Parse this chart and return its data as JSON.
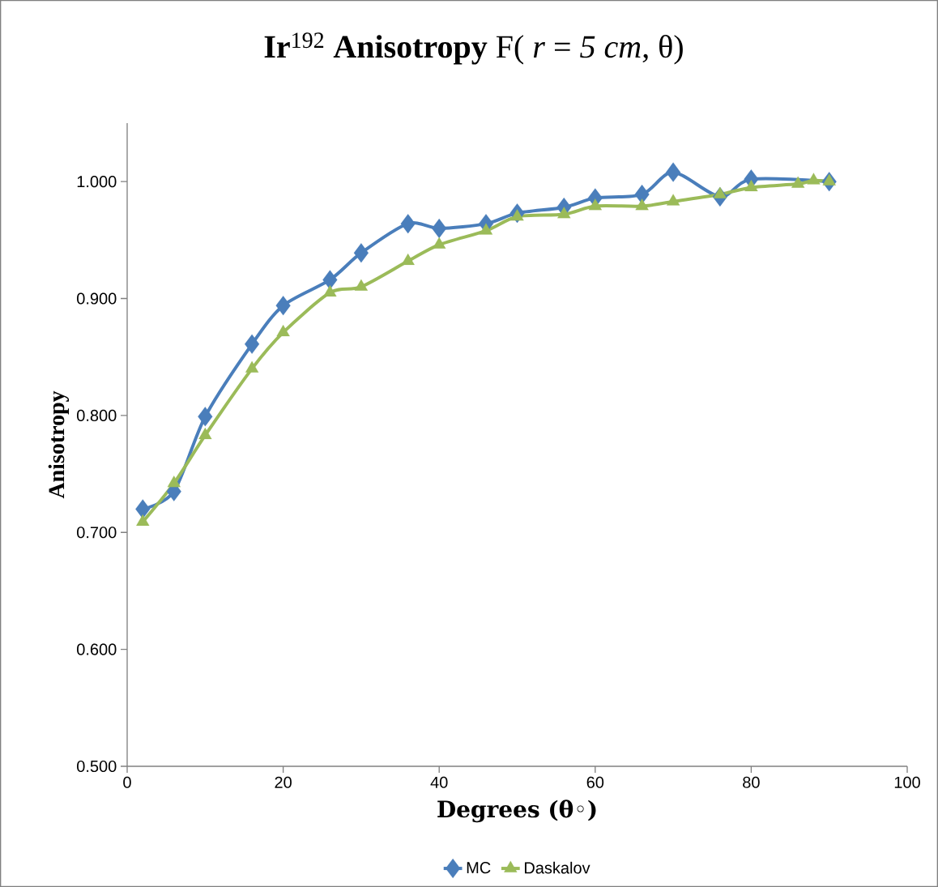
{
  "chart_data": {
    "type": "line",
    "title": "**Ir**$^{192}$ **Anisotropy** F( *r* = *5 cm*, θ)",
    "xlabel": "Degrees (θ◦)",
    "ylabel": "Anisotropy",
    "xlim": [
      0,
      100
    ],
    "xticks": [
      0,
      20,
      40,
      60,
      80,
      100
    ],
    "ylim": [
      0.5,
      1.05
    ],
    "yticks": [
      {
        "value": 0.5,
        "label": "0.500"
      },
      {
        "value": 0.6,
        "label": "0.600"
      },
      {
        "value": 0.7,
        "label": "0.700"
      },
      {
        "value": 0.8,
        "label": "0.800"
      },
      {
        "value": 0.9,
        "label": "0.900"
      },
      {
        "value": 1.0,
        "label": "1.000"
      }
    ],
    "grid": false,
    "legend": "bottom",
    "line_style": "solid",
    "series": [
      {
        "name": "MC",
        "color": "#4a7ebb",
        "marker": "diamond",
        "x": [
          2,
          6,
          10,
          16,
          20,
          26,
          30,
          36,
          40,
          46,
          50,
          56,
          60,
          66,
          70,
          76,
          80,
          90
        ],
        "values": [
          0.72,
          0.735,
          0.799,
          0.861,
          0.894,
          0.916,
          0.939,
          0.964,
          0.96,
          0.964,
          0.973,
          0.978,
          0.986,
          0.989,
          1.008,
          0.987,
          1.002,
          1.0
        ]
      },
      {
        "name": "Daskalov",
        "color": "#9bbb59",
        "marker": "triangle",
        "x": [
          2,
          6,
          10,
          16,
          20,
          26,
          30,
          36,
          40,
          46,
          50,
          56,
          60,
          66,
          70,
          76,
          80,
          86,
          88,
          90
        ],
        "values": [
          0.709,
          0.742,
          0.783,
          0.84,
          0.871,
          0.905,
          0.91,
          0.932,
          0.946,
          0.958,
          0.97,
          0.972,
          0.979,
          0.979,
          0.983,
          0.989,
          0.995,
          0.998,
          1.001,
          1.0
        ]
      }
    ]
  }
}
